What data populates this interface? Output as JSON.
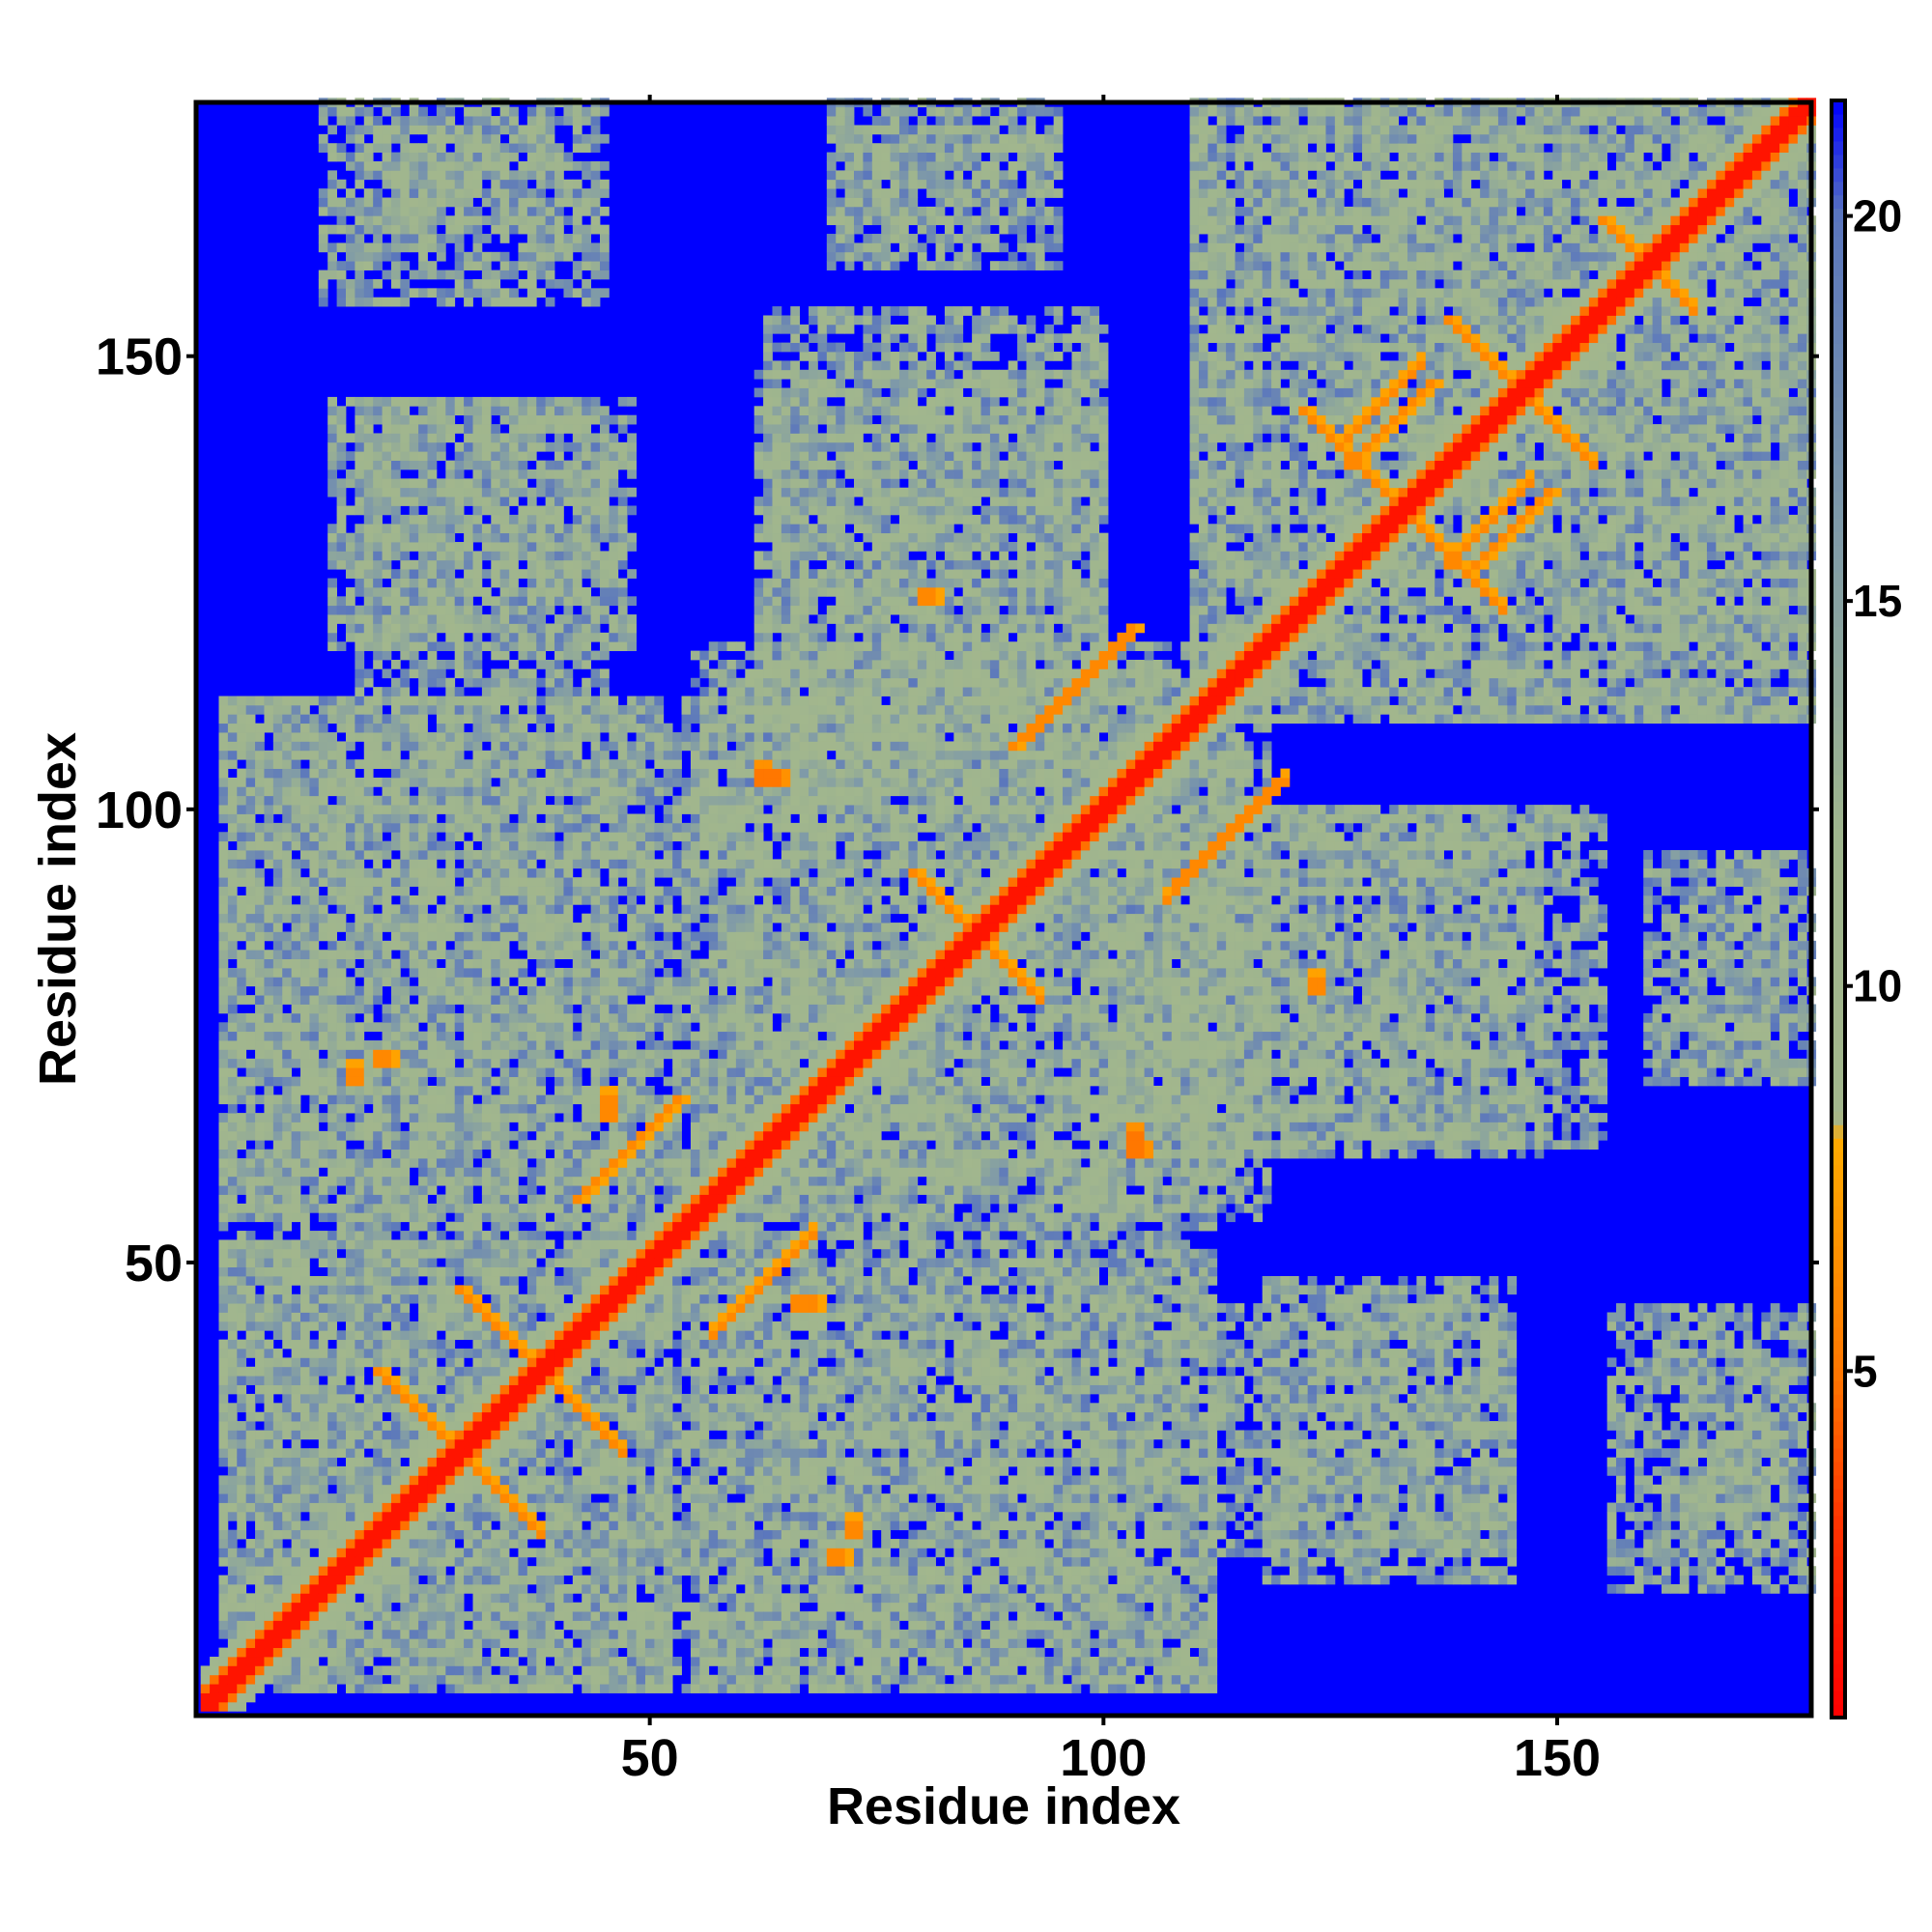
{
  "chart_data": {
    "type": "heatmap",
    "title": "",
    "xlabel": "Residue index",
    "ylabel": "Residue index",
    "n_residues": 178,
    "xlim": [
      1,
      178
    ],
    "ylim": [
      1,
      178
    ],
    "x_ticks": [
      50,
      100,
      150
    ],
    "y_ticks": [
      50,
      100,
      150
    ],
    "colorbar": {
      "min": 0.5,
      "max": 21.5,
      "ticks": [
        5,
        10,
        15,
        20
      ],
      "stops": [
        {
          "value": 0.5,
          "color": "#ff0000"
        },
        {
          "value": 3,
          "color": "#ff3300"
        },
        {
          "value": 5,
          "color": "#ff7700"
        },
        {
          "value": 8,
          "color": "#ffaa00"
        },
        {
          "value": 8.3,
          "color": "#a3b78d"
        },
        {
          "value": 12,
          "color": "#9fb58e"
        },
        {
          "value": 16,
          "color": "#7f9aa8"
        },
        {
          "value": 20,
          "color": "#5a76bd"
        },
        {
          "value": 21.5,
          "color": "#0000ff"
        }
      ]
    },
    "background_color": "#0000ff",
    "description_values": {
      "diagonal_distance": 1.5,
      "near_contact_distance": 5.5,
      "contact_shell_distance": 13,
      "far_distance": 21.5
    },
    "contact_features": [
      {
        "kind": "anti",
        "i": 29,
        "j": 29,
        "len": 10,
        "value": 6
      },
      {
        "kind": "anti",
        "i": 38,
        "j": 38,
        "len": 10,
        "value": 6
      },
      {
        "kind": "anti",
        "i": 86,
        "j": 86,
        "len": 8,
        "value": 6
      },
      {
        "kind": "anti",
        "i": 133,
        "j": 133,
        "len": 12,
        "value": 6
      },
      {
        "kind": "anti",
        "i": 146,
        "j": 146,
        "len": 9,
        "value": 6
      },
      {
        "kind": "anti",
        "i": 160,
        "j": 160,
        "len": 6,
        "value": 6
      },
      {
        "kind": "parallel",
        "i": 57,
        "j": 42,
        "len": 12,
        "value": 6
      },
      {
        "kind": "parallel",
        "i": 107,
        "j": 90,
        "len": 14,
        "value": 6
      },
      {
        "kind": "parallel",
        "i": 138,
        "j": 127,
        "len": 10,
        "value": 6
      },
      {
        "kind": "parallel",
        "i": 92,
        "j": 108,
        "len": 12,
        "value": 6
      },
      {
        "kind": "parallel",
        "i": 126,
        "j": 140,
        "len": 10,
        "value": 6
      },
      {
        "kind": "point",
        "i": 17,
        "j": 70,
        "len": 4,
        "value": 6
      },
      {
        "kind": "point",
        "i": 62,
        "j": 103,
        "len": 4,
        "value": 5
      },
      {
        "kind": "point",
        "i": 103,
        "j": 63,
        "len": 4,
        "value": 5
      },
      {
        "kind": "point",
        "i": 72,
        "j": 20,
        "len": 4,
        "value": 6
      },
      {
        "kind": "point",
        "i": 45,
        "j": 66,
        "len": 6,
        "value": 6
      },
      {
        "kind": "point",
        "i": 123,
        "j": 80,
        "len": 4,
        "value": 6
      }
    ],
    "shell_regions": [
      {
        "x": [
          3,
          52
        ],
        "y": [
          3,
          52
        ]
      },
      {
        "x": [
          3,
          50
        ],
        "y": [
          55,
          112
        ]
      },
      {
        "x": [
          15,
          48
        ],
        "y": [
          118,
          145
        ]
      },
      {
        "x": [
          14,
          45
        ],
        "y": [
          156,
          178
        ]
      },
      {
        "x": [
          52,
          112
        ],
        "y": [
          3,
          62
        ]
      },
      {
        "x": [
          60,
          118
        ],
        "y": [
          55,
          115
        ]
      },
      {
        "x": [
          62,
          100
        ],
        "y": [
          100,
          148
        ]
      },
      {
        "x": [
          70,
          95
        ],
        "y": [
          160,
          178
        ]
      },
      {
        "x": [
          110,
          155
        ],
        "y": [
          63,
          100
        ]
      },
      {
        "x": [
          112,
          145
        ],
        "y": [
          18,
          45
        ]
      },
      {
        "x": [
          165,
          175
        ],
        "y": [
          18,
          40
        ]
      },
      {
        "x": [
          165,
          175
        ],
        "y": [
          70,
          95
        ]
      },
      {
        "x": [
          110,
          178
        ],
        "y": [
          110,
          178
        ]
      }
    ]
  }
}
